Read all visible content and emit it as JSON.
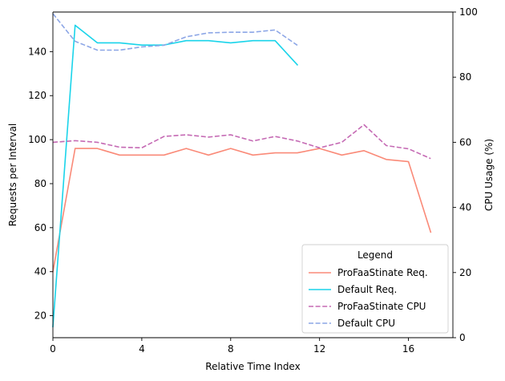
{
  "chart_data": {
    "type": "line",
    "xlabel": "Relative Time Index",
    "ylabel_left": "Requests per Interval",
    "ylabel_right": "CPU Usage (%)",
    "xlim": [
      0,
      18
    ],
    "ylim_left": [
      10,
      158
    ],
    "ylim_right": [
      0,
      100
    ],
    "xticks": [
      0,
      4,
      8,
      12,
      16
    ],
    "yticks_left": [
      20,
      40,
      60,
      80,
      100,
      120,
      140
    ],
    "yticks_right": [
      0,
      20,
      40,
      60,
      80,
      100
    ],
    "grid": false,
    "legend": {
      "title": "Legend",
      "placement": "lower-right"
    },
    "series": [
      {
        "name": "ProFaaStinate Req.",
        "axis": "left",
        "style": "solid",
        "color": "#fa8a78",
        "x": [
          0,
          1,
          2,
          3,
          4,
          5,
          6,
          7,
          8,
          9,
          10,
          11,
          12,
          13,
          14,
          15,
          16,
          17
        ],
        "values": [
          40,
          96,
          96,
          93,
          93,
          93,
          96,
          93,
          96,
          93,
          94,
          94,
          96,
          93,
          95,
          91,
          90,
          58
        ]
      },
      {
        "name": "Default Req.",
        "axis": "left",
        "style": "solid",
        "color": "#1ad4ea",
        "x": [
          0,
          1,
          2,
          3,
          4,
          5,
          6,
          7,
          8,
          9,
          10,
          11
        ],
        "values": [
          15,
          152,
          144,
          144,
          143,
          143,
          145,
          145,
          144,
          145,
          145,
          134
        ]
      },
      {
        "name": "ProFaaStinate CPU",
        "axis": "right",
        "style": "dashed",
        "color": "#c56ab4",
        "x": [
          0,
          1,
          2,
          3,
          4,
          5,
          6,
          7,
          8,
          9,
          10,
          11,
          12,
          13,
          14,
          15,
          16,
          17
        ],
        "values": [
          60,
          60.5,
          60,
          58.5,
          58.3,
          61.8,
          62.3,
          61.6,
          62.3,
          60.4,
          61.8,
          60.4,
          58.3,
          60,
          65.4,
          59,
          58,
          55
        ]
      },
      {
        "name": "Default CPU",
        "axis": "right",
        "style": "dashed",
        "color": "#8ca6e6",
        "x": [
          0,
          1,
          2,
          3,
          4,
          5,
          6,
          7,
          8,
          9,
          10,
          11
        ],
        "values": [
          99.5,
          91,
          88.3,
          88.3,
          89.3,
          89.8,
          92.4,
          93.6,
          93.8,
          93.8,
          94.5,
          89.8
        ]
      }
    ]
  }
}
